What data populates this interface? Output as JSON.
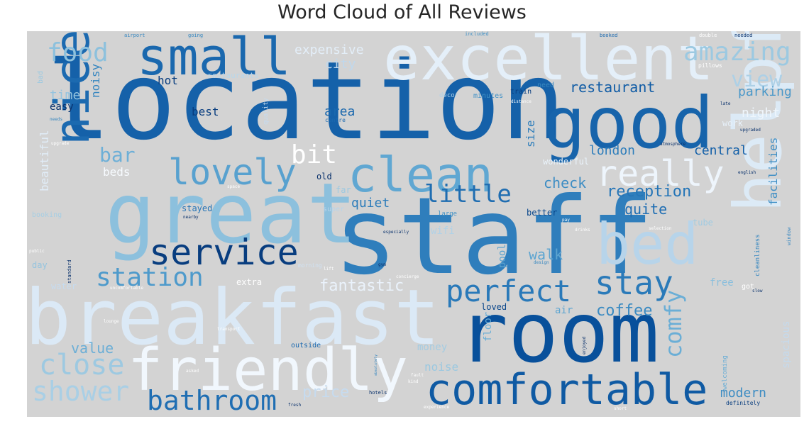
{
  "chart_data": {
    "type": "wordcloud",
    "title": "Word Cloud of All Reviews",
    "background": "#d3d3d3",
    "colormap": "Blues",
    "words": [
      {
        "text": "staff",
        "weight": 1.0,
        "color": "#2f7ebc"
      },
      {
        "text": "location",
        "weight": 0.95,
        "color": "#1561a9"
      },
      {
        "text": "room",
        "weight": 0.9,
        "color": "#08509b"
      },
      {
        "text": "great",
        "weight": 0.88,
        "color": "#8cc0dd"
      },
      {
        "text": "breakfast",
        "weight": 0.85,
        "color": "#dbe9f6"
      },
      {
        "text": "good",
        "weight": 0.8,
        "color": "#1764ab"
      },
      {
        "text": "excellent",
        "weight": 0.78,
        "color": "#e4eff9"
      },
      {
        "text": "helpful",
        "weight": 0.76,
        "color": "#dceaf6"
      },
      {
        "text": "friendly",
        "weight": 0.74,
        "color": "#f1f7fd"
      },
      {
        "text": "comfortable",
        "weight": 0.7,
        "color": "#0f5aa3"
      },
      {
        "text": "nice",
        "weight": 0.68,
        "color": "#1c6ab0"
      },
      {
        "text": "clean",
        "weight": 0.66,
        "color": "#60a7d2"
      },
      {
        "text": "small",
        "weight": 0.64,
        "color": "#1a68ae"
      },
      {
        "text": "bed",
        "weight": 0.63,
        "color": "#b7d4ea"
      },
      {
        "text": "service",
        "weight": 0.62,
        "color": "#083d7f"
      },
      {
        "text": "stay",
        "weight": 0.6,
        "color": "#2a7ab9"
      },
      {
        "text": "perfect",
        "weight": 0.58,
        "color": "#2979b9"
      },
      {
        "text": "lovely",
        "weight": 0.56,
        "color": "#58a1cf"
      },
      {
        "text": "really",
        "weight": 0.55,
        "color": "#eef5fc"
      },
      {
        "text": "bathroom",
        "weight": 0.54,
        "color": "#1f6eb3"
      },
      {
        "text": "station",
        "weight": 0.52,
        "color": "#4e9acb"
      },
      {
        "text": "shower",
        "weight": 0.5,
        "color": "#a9cfe5"
      },
      {
        "text": "close",
        "weight": 0.5,
        "color": "#9dc9e1"
      },
      {
        "text": "food",
        "weight": 0.48,
        "color": "#8dc1dd"
      },
      {
        "text": "amazing",
        "weight": 0.48,
        "color": "#9cc9e1"
      },
      {
        "text": "little",
        "weight": 0.46,
        "color": "#1f6db1"
      },
      {
        "text": "comfy",
        "weight": 0.45,
        "color": "#6aaed6"
      },
      {
        "text": "bit",
        "weight": 0.44,
        "color": "#ffffff"
      },
      {
        "text": "view",
        "weight": 0.44,
        "color": "#add0e6"
      },
      {
        "text": "bar",
        "weight": 0.4,
        "color": "#6dafd7"
      },
      {
        "text": "fantastic",
        "weight": 0.38,
        "color": "#eaf2fb"
      },
      {
        "text": "coffee",
        "weight": 0.38,
        "color": "#3a8ac2"
      },
      {
        "text": "reception",
        "weight": 0.37,
        "color": "#2575b7"
      },
      {
        "text": "restaurant",
        "weight": 0.36,
        "color": "#115ca5"
      },
      {
        "text": "value",
        "weight": 0.35,
        "color": "#6baed6"
      },
      {
        "text": "price",
        "weight": 0.34,
        "color": "#c6dbef"
      },
      {
        "text": "check",
        "weight": 0.34,
        "color": "#3d8dc4"
      },
      {
        "text": "walk",
        "weight": 0.34,
        "color": "#5da5d1"
      },
      {
        "text": "quite",
        "weight": 0.33,
        "color": "#1f6eb3"
      },
      {
        "text": "quiet",
        "weight": 0.33,
        "color": "#2c7cba"
      },
      {
        "text": "central",
        "weight": 0.32,
        "color": "#1561a9"
      },
      {
        "text": "parking",
        "weight": 0.32,
        "color": "#4a98c9"
      },
      {
        "text": "expensive",
        "weight": 0.32,
        "color": "#e3eef8"
      },
      {
        "text": "area",
        "weight": 0.32,
        "color": "#1a68ae"
      },
      {
        "text": "city",
        "weight": 0.3,
        "color": "#bfd8ed"
      },
      {
        "text": "time",
        "weight": 0.3,
        "color": "#94c4df"
      },
      {
        "text": "modern",
        "weight": 0.3,
        "color": "#3c8cc3"
      },
      {
        "text": "night",
        "weight": 0.3,
        "color": "#eff6fc"
      },
      {
        "text": "beds",
        "weight": 0.3,
        "color": "#f7fbff"
      },
      {
        "text": "london",
        "weight": 0.29,
        "color": "#2d7dbb"
      },
      {
        "text": "facilities",
        "weight": 0.29,
        "color": "#3f8fc5"
      },
      {
        "text": "noisy",
        "weight": 0.28,
        "color": "#3787c0"
      },
      {
        "text": "noise",
        "weight": 0.28,
        "color": "#9ac8e0"
      },
      {
        "text": "size",
        "weight": 0.28,
        "color": "#2d7dbb"
      },
      {
        "text": "beautiful",
        "weight": 0.28,
        "color": "#e1edf8"
      },
      {
        "text": "hot",
        "weight": 0.27,
        "color": "#083d7f"
      },
      {
        "text": "best",
        "weight": 0.27,
        "color": "#083d7f"
      },
      {
        "text": "easy",
        "weight": 0.26,
        "color": "#08306b"
      },
      {
        "text": "spacious",
        "weight": 0.26,
        "color": "#c4daee"
      },
      {
        "text": "money",
        "weight": 0.25,
        "color": "#a3cce3"
      },
      {
        "text": "floor",
        "weight": 0.25,
        "color": "#6aaed6"
      },
      {
        "text": "pool",
        "weight": 0.25,
        "color": "#5aa2cf"
      },
      {
        "text": "free",
        "weight": 0.25,
        "color": "#8abfdd"
      },
      {
        "text": "air",
        "weight": 0.25,
        "color": "#5fa6d1"
      },
      {
        "text": "wifi",
        "weight": 0.24,
        "color": "#b0d2e7"
      },
      {
        "text": "stayed",
        "weight": 0.23,
        "color": "#2474b7"
      },
      {
        "text": "better",
        "weight": 0.23,
        "color": "#08468b"
      },
      {
        "text": "tube",
        "weight": 0.23,
        "color": "#a0cbe2"
      },
      {
        "text": "loved",
        "weight": 0.23,
        "color": "#08458a"
      },
      {
        "text": "old",
        "weight": 0.22,
        "color": "#08306b"
      },
      {
        "text": "far",
        "weight": 0.22,
        "color": "#9cc9e1"
      },
      {
        "text": "work",
        "weight": 0.22,
        "color": "#e7f1fa"
      },
      {
        "text": "day",
        "weight": 0.21,
        "color": "#94c4df"
      },
      {
        "text": "water",
        "weight": 0.21,
        "color": "#c6dbef"
      },
      {
        "text": "extra",
        "weight": 0.2,
        "color": "#ffffff"
      },
      {
        "text": "outside",
        "weight": 0.2,
        "color": "#1c6ab0"
      },
      {
        "text": "wonderful",
        "weight": 0.2,
        "color": "#eaf3fb"
      },
      {
        "text": "restaurants",
        "weight": 0.2,
        "color": "#b9d6ea"
      },
      {
        "text": "minutes",
        "weight": 0.18,
        "color": "#4191c6"
      },
      {
        "text": "need",
        "weight": 0.18,
        "color": "#3787c0"
      },
      {
        "text": "train",
        "weight": 0.17,
        "color": "#083d7f"
      },
      {
        "text": "morning",
        "weight": 0.17,
        "color": "#d0e1f2"
      },
      {
        "text": "super",
        "weight": 0.17,
        "color": "#b7d4ea"
      },
      {
        "text": "large",
        "weight": 0.17,
        "color": "#4292c6"
      },
      {
        "text": "booking",
        "weight": 0.16,
        "color": "#a6cee4"
      },
      {
        "text": "pillows",
        "weight": 0.16,
        "color": "#ffffff"
      },
      {
        "text": "welcoming",
        "weight": 0.16,
        "color": "#6aaed6"
      },
      {
        "text": "cleanliness",
        "weight": 0.16,
        "color": "#3787c0"
      },
      {
        "text": "bad",
        "weight": 0.15,
        "color": "#9dc9e1"
      },
      {
        "text": "quality",
        "weight": 0.15,
        "color": "#c6dbef"
      },
      {
        "text": "centre",
        "weight": 0.14,
        "color": "#1c6ab0"
      },
      {
        "text": "decor",
        "weight": 0.14,
        "color": "#b0d2e7"
      },
      {
        "text": "definitely",
        "weight": 0.14,
        "color": "#083d7f"
      },
      {
        "text": "got",
        "weight": 0.14,
        "color": "#ffffff"
      },
      {
        "text": "hotels",
        "weight": 0.12,
        "color": "#08306b"
      },
      {
        "text": "airport",
        "weight": 0.1,
        "color": "#3787c0"
      },
      {
        "text": "going",
        "weight": 0.1,
        "color": "#3787c0"
      },
      {
        "text": "included",
        "weight": 0.1,
        "color": "#4292c6"
      },
      {
        "text": "booked",
        "weight": 0.1,
        "color": "#1c6ab0"
      },
      {
        "text": "needed",
        "weight": 0.1,
        "color": "#08306b"
      },
      {
        "text": "double",
        "weight": 0.1,
        "color": "#ffffff"
      },
      {
        "text": "atmosphere",
        "weight": 0.1,
        "color": "#08306b"
      },
      {
        "text": "english",
        "weight": 0.1,
        "color": "#08306b"
      },
      {
        "text": "upgraded",
        "weight": 0.1,
        "color": "#08306b"
      },
      {
        "text": "distance",
        "weight": 0.1,
        "color": "#ffffff"
      },
      {
        "text": "design",
        "weight": 0.1,
        "color": "#3787c0"
      },
      {
        "text": "experience",
        "weight": 0.1,
        "color": "#ffffff"
      },
      {
        "text": "fresh",
        "weight": 0.1,
        "color": "#08306b"
      },
      {
        "text": "asked",
        "weight": 0.1,
        "color": "#ffffff"
      },
      {
        "text": "especially",
        "weight": 0.1,
        "color": "#08306b"
      },
      {
        "text": "nearby",
        "weight": 0.1,
        "color": "#08306b"
      },
      {
        "text": "absolutely",
        "weight": 0.1,
        "color": "#3787c0"
      },
      {
        "text": "uncomfortable",
        "weight": 0.1,
        "color": "#ffffff"
      },
      {
        "text": "enjoyed",
        "weight": 0.1,
        "color": "#08306b"
      },
      {
        "text": "standard",
        "weight": 0.1,
        "color": "#08306b"
      },
      {
        "text": "lift",
        "weight": 0.1,
        "color": "#ffffff"
      },
      {
        "text": "gym",
        "weight": 0.1,
        "color": "#08306b"
      },
      {
        "text": "space",
        "weight": 0.1,
        "color": "#ffffff"
      },
      {
        "text": "public",
        "weight": 0.1,
        "color": "#ffffff"
      },
      {
        "text": "short",
        "weight": 0.1,
        "color": "#ffffff"
      },
      {
        "text": "needs",
        "weight": 0.1,
        "color": "#3787c0"
      },
      {
        "text": "kind",
        "weight": 0.1,
        "color": "#ffffff"
      },
      {
        "text": "fault",
        "weight": 0.1,
        "color": "#ffffff"
      },
      {
        "text": "slow",
        "weight": 0.1,
        "color": "#08306b"
      },
      {
        "text": "selection",
        "weight": 0.1,
        "color": "#ffffff"
      },
      {
        "text": "window",
        "weight": 0.1,
        "color": "#3787c0"
      },
      {
        "text": "concierge",
        "weight": 0.1,
        "color": "#ffffff"
      },
      {
        "text": "lounge",
        "weight": 0.1,
        "color": "#ffffff"
      },
      {
        "text": "transport",
        "weight": 0.1,
        "color": "#ffffff"
      },
      {
        "text": "upgrade",
        "weight": 0.1,
        "color": "#ffffff"
      },
      {
        "text": "pay",
        "weight": 0.1,
        "color": "#ffffff"
      },
      {
        "text": "late",
        "weight": 0.1,
        "color": "#08306b"
      },
      {
        "text": "drinks",
        "weight": 0.1,
        "color": "#ffffff"
      }
    ]
  }
}
